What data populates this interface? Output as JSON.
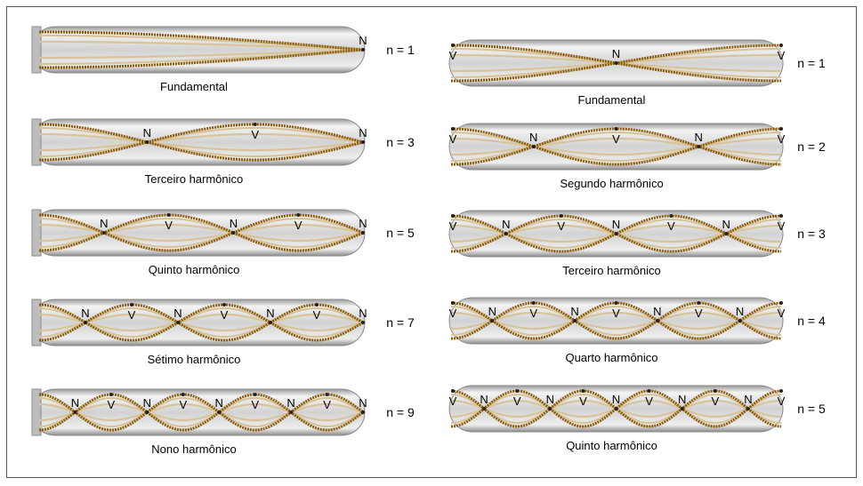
{
  "diagram": {
    "left_panel": [
      {
        "n_label": "n = 1",
        "caption": "Fundamental",
        "harmonic": 1
      },
      {
        "n_label": "n = 3",
        "caption": "Terceiro harmônico",
        "harmonic": 3
      },
      {
        "n_label": "n = 5",
        "caption": "Quinto harmônico",
        "harmonic": 5
      },
      {
        "n_label": "n = 7",
        "caption": "Sétimo harmônico",
        "harmonic": 7
      },
      {
        "n_label": "n = 9",
        "caption": "Nono harmônico",
        "harmonic": 9
      }
    ],
    "right_panel": [
      {
        "n_label": "n = 1",
        "caption": "Fundamental",
        "harmonic": 1
      },
      {
        "n_label": "n = 2",
        "caption": "Segundo harmônico",
        "harmonic": 2
      },
      {
        "n_label": "n = 3",
        "caption": "Terceiro harmônico",
        "harmonic": 3
      },
      {
        "n_label": "n = 4",
        "caption": "Quarto harmônico",
        "harmonic": 4
      },
      {
        "n_label": "n = 5",
        "caption": "Quinto harmônico",
        "harmonic": 5
      }
    ],
    "antinode_mark": "V",
    "node_mark": "N",
    "colors": {
      "pipe_fill": "#d6d6d6",
      "pipe_edge": "#8a8a8a",
      "wave_main": "#8a5a08",
      "wave_ghost": "#d8c49a",
      "frame_border": "#555555"
    }
  }
}
